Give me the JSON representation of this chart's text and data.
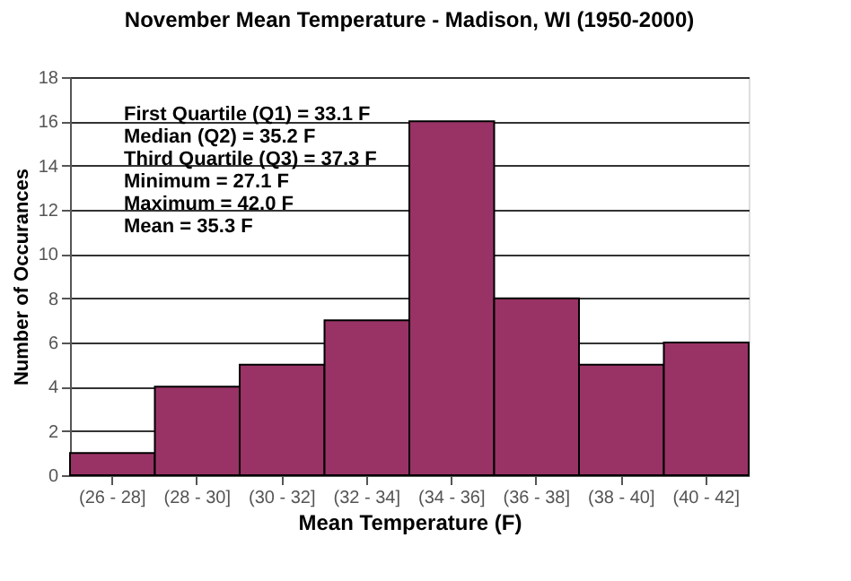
{
  "chart_data": {
    "type": "bar",
    "title": "November Mean Temperature - Madison, WI (1950-2000)",
    "xlabel": "Mean Temperature (F)",
    "ylabel": "Number of Occurances",
    "categories": [
      "(26 - 28]",
      "(28 - 30]",
      "(30 - 32]",
      "(32 - 34]",
      "(34 - 36]",
      "(36 - 38]",
      "(38 - 40]",
      "(40 - 42]"
    ],
    "values": [
      1,
      4,
      5,
      7,
      16,
      8,
      5,
      6
    ],
    "color": "#993366",
    "ylim": [
      0,
      18
    ],
    "yticks": [
      0,
      2,
      4,
      6,
      8,
      10,
      12,
      14,
      16,
      18
    ],
    "grid": "y",
    "annotations": [
      "First Quartile (Q1) = 33.1 F",
      "Median (Q2) = 35.2 F",
      "Third Quartile (Q3) = 37.3 F",
      "Minimum = 27.1 F",
      "Maximum = 42.0 F",
      "Mean = 35.3 F"
    ]
  }
}
